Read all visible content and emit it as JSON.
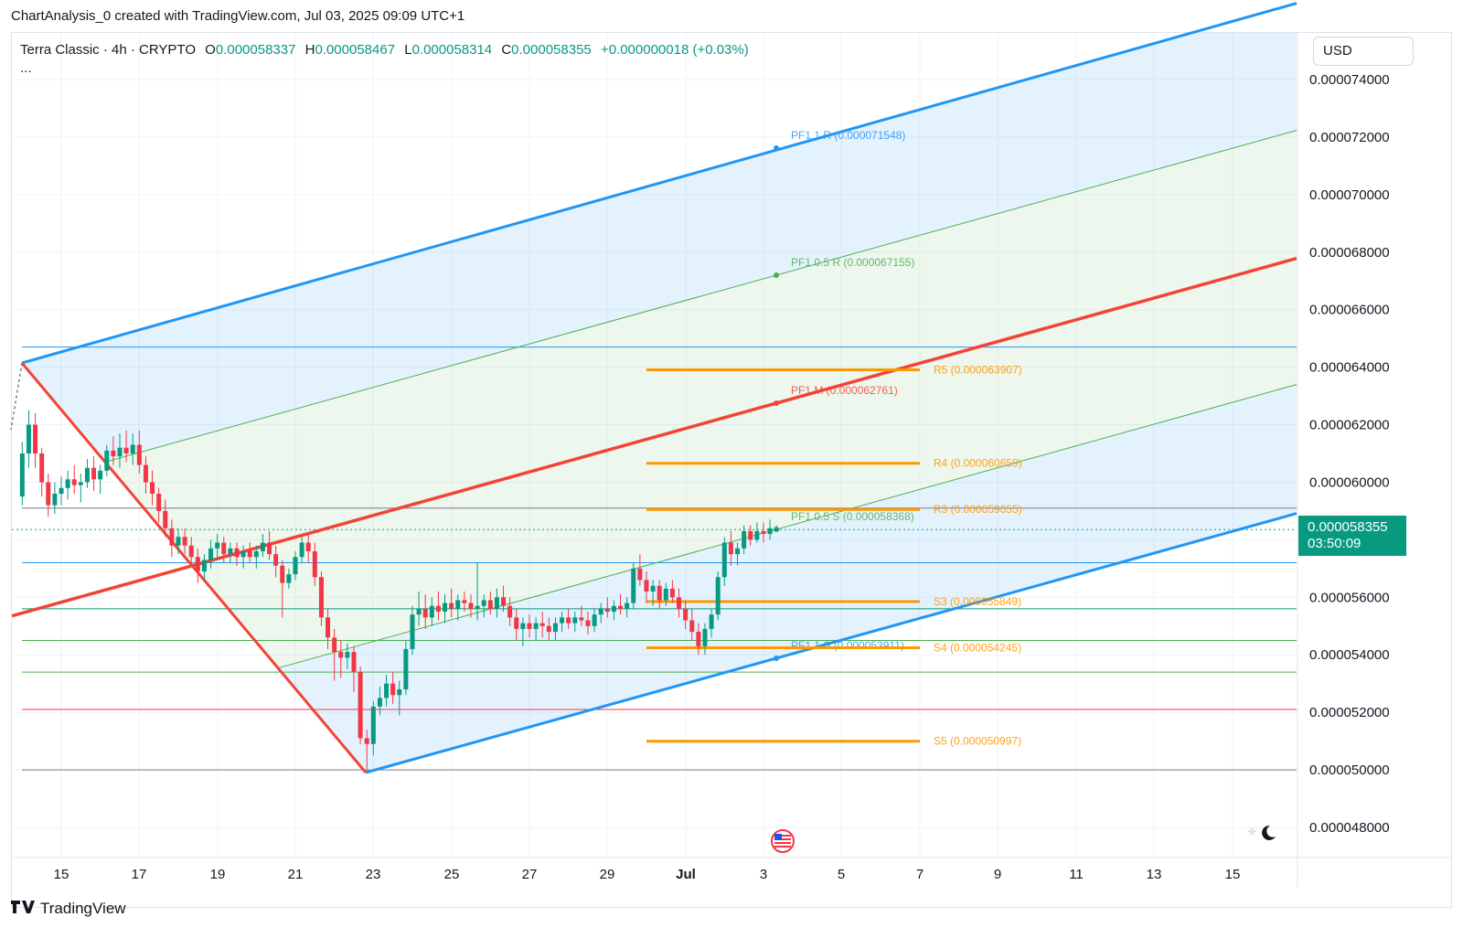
{
  "caption": "ChartAnalysis_0 created with TradingView.com, Jul 03, 2025 09:09 UTC+1",
  "legend": {
    "symbol": "Terra Classic · 4h · CRYPTO",
    "open_label": "O",
    "open": "0.000058337",
    "high_label": "H",
    "high": "0.000058467",
    "low_label": "L",
    "low": "0.000058314",
    "close_label": "C",
    "close": "0.000058355",
    "change": "+0.000000018 (+0.03%)",
    "more": "..."
  },
  "currency": "USD",
  "last_price": {
    "price": "0.000058355",
    "countdown": "03:50:09"
  },
  "footer": {
    "brand": "TradingView",
    "icon": "tradingview-logo-icon"
  },
  "icons": {
    "flag": "us-flag-icon",
    "theme": "moon-icon",
    "sun": "sun-icon"
  },
  "colors": {
    "up": "#089981",
    "down": "#f23645",
    "blue": "#2196f3",
    "red": "#f44336",
    "green": "#4caf50",
    "orange": "#ff9800",
    "grey": "#787b86"
  },
  "chart_data": {
    "type": "candlestick",
    "title": "Terra Classic · 4h · CRYPTO",
    "xlabel": "",
    "ylabel": "",
    "ylim": [
      4.72e-05,
      7.56e-05
    ],
    "y_ticks": [
      "0.000074000",
      "0.000072000",
      "0.000070000",
      "0.000068000",
      "0.000066000",
      "0.000064000",
      "0.000062000",
      "0.000060000",
      "0.000058000",
      "0.000056000",
      "0.000054000",
      "0.000052000",
      "0.000050000",
      "0.000048000"
    ],
    "x_ticks": [
      "15",
      "17",
      "19",
      "21",
      "23",
      "25",
      "27",
      "29",
      "Jul",
      "3",
      "5",
      "7",
      "9",
      "11",
      "13",
      "15"
    ],
    "series": [
      {
        "type": "candles",
        "approx": true,
        "values": [
          [
            "2025-06-14 00:00",
            5.95e-05,
            6.14e-05,
            5.92e-05,
            6.1e-05
          ],
          [
            "2025-06-14 04:00",
            6.1e-05,
            6.25e-05,
            6.05e-05,
            6.2e-05
          ],
          [
            "2025-06-14 08:00",
            6.2e-05,
            6.24e-05,
            6.05e-05,
            6.1e-05
          ],
          [
            "2025-06-14 12:00",
            6.1e-05,
            6.12e-05,
            5.95e-05,
            6e-05
          ],
          [
            "2025-06-14 16:00",
            6e-05,
            6.03e-05,
            5.88e-05,
            5.92e-05
          ],
          [
            "2025-06-14 20:00",
            5.92e-05,
            6e-05,
            5.89e-05,
            5.96e-05
          ],
          [
            "2025-06-15 00:00",
            5.96e-05,
            6.02e-05,
            5.92e-05,
            5.98e-05
          ],
          [
            "2025-06-15 04:00",
            5.98e-05,
            6.04e-05,
            5.94e-05,
            6.01e-05
          ],
          [
            "2025-06-15 08:00",
            6.01e-05,
            6.06e-05,
            5.96e-05,
            5.99e-05
          ],
          [
            "2025-06-15 12:00",
            5.99e-05,
            6.03e-05,
            5.93e-05,
            6e-05
          ],
          [
            "2025-06-15 16:00",
            6e-05,
            6.08e-05,
            5.98e-05,
            6.05e-05
          ],
          [
            "2025-06-15 20:00",
            6.05e-05,
            6.09e-05,
            5.97e-05,
            6.01e-05
          ],
          [
            "2025-06-16 00:00",
            6.01e-05,
            6.06e-05,
            5.96e-05,
            6.04e-05
          ],
          [
            "2025-06-16 04:00",
            6.04e-05,
            6.13e-05,
            6.02e-05,
            6.11e-05
          ],
          [
            "2025-06-16 08:00",
            6.11e-05,
            6.16e-05,
            6.06e-05,
            6.09e-05
          ],
          [
            "2025-06-16 12:00",
            6.09e-05,
            6.17e-05,
            6.05e-05,
            6.12e-05
          ],
          [
            "2025-06-16 16:00",
            6.12e-05,
            6.18e-05,
            6.07e-05,
            6.1e-05
          ],
          [
            "2025-06-16 20:00",
            6.1e-05,
            6.17e-05,
            6.06e-05,
            6.13e-05
          ],
          [
            "2025-06-17 00:00",
            6.13e-05,
            6.18e-05,
            6.03e-05,
            6.06e-05
          ],
          [
            "2025-06-17 04:00",
            6.06e-05,
            6.09e-05,
            5.96e-05,
            6e-05
          ],
          [
            "2025-06-17 08:00",
            6e-05,
            6.04e-05,
            5.92e-05,
            5.96e-05
          ],
          [
            "2025-06-17 12:00",
            5.96e-05,
            5.98e-05,
            5.86e-05,
            5.9e-05
          ],
          [
            "2025-06-17 16:00",
            5.9e-05,
            5.94e-05,
            5.81e-05,
            5.84e-05
          ],
          [
            "2025-06-17 20:00",
            5.84e-05,
            5.87e-05,
            5.74e-05,
            5.78e-05
          ],
          [
            "2025-06-18 00:00",
            5.78e-05,
            5.84e-05,
            5.75e-05,
            5.81e-05
          ],
          [
            "2025-06-18 04:00",
            5.81e-05,
            5.84e-05,
            5.75e-05,
            5.78e-05
          ],
          [
            "2025-06-18 08:00",
            5.78e-05,
            5.81e-05,
            5.71e-05,
            5.74e-05
          ],
          [
            "2025-06-18 12:00",
            5.74e-05,
            5.77e-05,
            5.65e-05,
            5.69e-05
          ],
          [
            "2025-06-18 16:00",
            5.69e-05,
            5.75e-05,
            5.66e-05,
            5.73e-05
          ],
          [
            "2025-06-18 20:00",
            5.73e-05,
            5.8e-05,
            5.7e-05,
            5.77e-05
          ],
          [
            "2025-06-19 00:00",
            5.77e-05,
            5.82e-05,
            5.73e-05,
            5.79e-05
          ],
          [
            "2025-06-19 04:00",
            5.79e-05,
            5.81e-05,
            5.72e-05,
            5.75e-05
          ],
          [
            "2025-06-19 08:00",
            5.75e-05,
            5.79e-05,
            5.72e-05,
            5.77e-05
          ],
          [
            "2025-06-19 12:00",
            5.77e-05,
            5.79e-05,
            5.71e-05,
            5.74e-05
          ],
          [
            "2025-06-19 16:00",
            5.74e-05,
            5.78e-05,
            5.7e-05,
            5.76e-05
          ],
          [
            "2025-06-19 20:00",
            5.76e-05,
            5.79e-05,
            5.72e-05,
            5.74e-05
          ],
          [
            "2025-06-20 00:00",
            5.74e-05,
            5.78e-05,
            5.7e-05,
            5.76e-05
          ],
          [
            "2025-06-20 04:00",
            5.76e-05,
            5.82e-05,
            5.74e-05,
            5.79e-05
          ],
          [
            "2025-06-20 08:00",
            5.79e-05,
            5.83e-05,
            5.73e-05,
            5.75e-05
          ],
          [
            "2025-06-20 12:00",
            5.75e-05,
            5.78e-05,
            5.67e-05,
            5.71e-05
          ],
          [
            "2025-06-20 16:00",
            5.71e-05,
            5.73e-05,
            5.53e-05,
            5.65e-05
          ],
          [
            "2025-06-20 20:00",
            5.65e-05,
            5.7e-05,
            5.63e-05,
            5.68e-05
          ],
          [
            "2025-06-21 00:00",
            5.68e-05,
            5.76e-05,
            5.66e-05,
            5.74e-05
          ],
          [
            "2025-06-21 04:00",
            5.74e-05,
            5.81e-05,
            5.72e-05,
            5.79e-05
          ],
          [
            "2025-06-21 08:00",
            5.79e-05,
            5.82e-05,
            5.72e-05,
            5.76e-05
          ],
          [
            "2025-06-21 12:00",
            5.76e-05,
            5.79e-05,
            5.64e-05,
            5.67e-05
          ],
          [
            "2025-06-21 16:00",
            5.67e-05,
            5.69e-05,
            5.5e-05,
            5.53e-05
          ],
          [
            "2025-06-21 20:00",
            5.53e-05,
            5.56e-05,
            5.42e-05,
            5.46e-05
          ],
          [
            "2025-06-22 00:00",
            5.46e-05,
            5.49e-05,
            5.31e-05,
            5.41e-05
          ],
          [
            "2025-06-22 04:00",
            5.41e-05,
            5.45e-05,
            5.32e-05,
            5.39e-05
          ],
          [
            "2025-06-22 08:00",
            5.39e-05,
            5.44e-05,
            5.35e-05,
            5.41e-05
          ],
          [
            "2025-06-22 12:00",
            5.41e-05,
            5.43e-05,
            5.27e-05,
            5.34e-05
          ],
          [
            "2025-06-22 16:00",
            5.34e-05,
            5.36e-05,
            5.09e-05,
            5.11e-05
          ],
          [
            "2025-06-22 20:00",
            5.11e-05,
            5.14e-05,
            5e-05,
            5.09e-05
          ],
          [
            "2025-06-23 00:00",
            5.09e-05,
            5.24e-05,
            5.05e-05,
            5.22e-05
          ],
          [
            "2025-06-23 04:00",
            5.22e-05,
            5.29e-05,
            5.19e-05,
            5.25e-05
          ],
          [
            "2025-06-23 08:00",
            5.25e-05,
            5.33e-05,
            5.22e-05,
            5.3e-05
          ],
          [
            "2025-06-23 12:00",
            5.3e-05,
            5.34e-05,
            5.23e-05,
            5.26e-05
          ],
          [
            "2025-06-23 16:00",
            5.26e-05,
            5.31e-05,
            5.19e-05,
            5.28e-05
          ],
          [
            "2025-06-23 20:00",
            5.28e-05,
            5.45e-05,
            5.26e-05,
            5.42e-05
          ],
          [
            "2025-06-24 00:00",
            5.42e-05,
            5.57e-05,
            5.4e-05,
            5.54e-05
          ],
          [
            "2025-06-24 04:00",
            5.54e-05,
            5.62e-05,
            5.5e-05,
            5.56e-05
          ],
          [
            "2025-06-24 08:00",
            5.56e-05,
            5.61e-05,
            5.49e-05,
            5.53e-05
          ],
          [
            "2025-06-24 12:00",
            5.53e-05,
            5.6e-05,
            5.5e-05,
            5.57e-05
          ],
          [
            "2025-06-24 16:00",
            5.57e-05,
            5.62e-05,
            5.52e-05,
            5.55e-05
          ],
          [
            "2025-06-24 20:00",
            5.55e-05,
            5.61e-05,
            5.51e-05,
            5.58e-05
          ],
          [
            "2025-06-25 00:00",
            5.58e-05,
            5.63e-05,
            5.53e-05,
            5.56e-05
          ],
          [
            "2025-06-25 04:00",
            5.56e-05,
            5.61e-05,
            5.52e-05,
            5.59e-05
          ],
          [
            "2025-06-25 08:00",
            5.59e-05,
            5.62e-05,
            5.55e-05,
            5.58e-05
          ],
          [
            "2025-06-25 12:00",
            5.58e-05,
            5.61e-05,
            5.53e-05,
            5.56e-05
          ],
          [
            "2025-06-25 16:00",
            5.56e-05,
            5.72e-05,
            5.52e-05,
            5.57e-05
          ],
          [
            "2025-06-25 20:00",
            5.57e-05,
            5.61e-05,
            5.53e-05,
            5.59e-05
          ],
          [
            "2025-06-26 00:00",
            5.59e-05,
            5.62e-05,
            5.54e-05,
            5.56e-05
          ],
          [
            "2025-06-26 04:00",
            5.56e-05,
            5.63e-05,
            5.53e-05,
            5.6e-05
          ],
          [
            "2025-06-26 08:00",
            5.6e-05,
            5.64e-05,
            5.55e-05,
            5.57e-05
          ],
          [
            "2025-06-26 12:00",
            5.57e-05,
            5.6e-05,
            5.5e-05,
            5.53e-05
          ],
          [
            "2025-06-26 16:00",
            5.53e-05,
            5.56e-05,
            5.45e-05,
            5.49e-05
          ],
          [
            "2025-06-26 20:00",
            5.49e-05,
            5.53e-05,
            5.43e-05,
            5.51e-05
          ],
          [
            "2025-06-27 00:00",
            5.51e-05,
            5.54e-05,
            5.46e-05,
            5.49e-05
          ],
          [
            "2025-06-27 04:00",
            5.49e-05,
            5.53e-05,
            5.45e-05,
            5.51e-05
          ],
          [
            "2025-06-27 08:00",
            5.51e-05,
            5.55e-05,
            5.46e-05,
            5.5e-05
          ],
          [
            "2025-06-27 12:00",
            5.5e-05,
            5.53e-05,
            5.45e-05,
            5.48e-05
          ],
          [
            "2025-06-27 16:00",
            5.48e-05,
            5.53e-05,
            5.45e-05,
            5.51e-05
          ],
          [
            "2025-06-27 20:00",
            5.51e-05,
            5.55e-05,
            5.48e-05,
            5.53e-05
          ],
          [
            "2025-06-28 00:00",
            5.53e-05,
            5.56e-05,
            5.49e-05,
            5.51e-05
          ],
          [
            "2025-06-28 04:00",
            5.51e-05,
            5.55e-05,
            5.48e-05,
            5.53e-05
          ],
          [
            "2025-06-28 08:00",
            5.53e-05,
            5.57e-05,
            5.5e-05,
            5.52e-05
          ],
          [
            "2025-06-28 12:00",
            5.52e-05,
            5.55e-05,
            5.47e-05,
            5.5e-05
          ],
          [
            "2025-06-28 16:00",
            5.5e-05,
            5.56e-05,
            5.48e-05,
            5.54e-05
          ],
          [
            "2025-06-28 20:00",
            5.54e-05,
            5.58e-05,
            5.51e-05,
            5.56e-05
          ],
          [
            "2025-06-29 00:00",
            5.56e-05,
            5.6e-05,
            5.53e-05,
            5.55e-05
          ],
          [
            "2025-06-29 04:00",
            5.55e-05,
            5.59e-05,
            5.52e-05,
            5.57e-05
          ],
          [
            "2025-06-29 08:00",
            5.57e-05,
            5.61e-05,
            5.54e-05,
            5.56e-05
          ],
          [
            "2025-06-29 12:00",
            5.56e-05,
            5.6e-05,
            5.53e-05,
            5.58e-05
          ],
          [
            "2025-06-29 16:00",
            5.58e-05,
            5.72e-05,
            5.56e-05,
            5.7e-05
          ],
          [
            "2025-06-29 20:00",
            5.7e-05,
            5.75e-05,
            5.64e-05,
            5.66e-05
          ],
          [
            "2025-06-30 00:00",
            5.66e-05,
            5.69e-05,
            5.58e-05,
            5.62e-05
          ],
          [
            "2025-06-30 04:00",
            5.62e-05,
            5.66e-05,
            5.57e-05,
            5.64e-05
          ],
          [
            "2025-06-30 08:00",
            5.64e-05,
            5.66e-05,
            5.56e-05,
            5.59e-05
          ],
          [
            "2025-06-30 12:00",
            5.59e-05,
            5.65e-05,
            5.57e-05,
            5.63e-05
          ],
          [
            "2025-06-30 16:00",
            5.63e-05,
            5.66e-05,
            5.58e-05,
            5.6e-05
          ],
          [
            "2025-06-30 20:00",
            5.6e-05,
            5.63e-05,
            5.53e-05,
            5.56e-05
          ],
          [
            "2025-07-01 00:00",
            5.56e-05,
            5.59e-05,
            5.49e-05,
            5.52e-05
          ],
          [
            "2025-07-01 04:00",
            5.52e-05,
            5.56e-05,
            5.45e-05,
            5.48e-05
          ],
          [
            "2025-07-01 08:00",
            5.48e-05,
            5.51e-05,
            5.4e-05,
            5.43e-05
          ],
          [
            "2025-07-01 12:00",
            5.43e-05,
            5.51e-05,
            5.4e-05,
            5.49e-05
          ],
          [
            "2025-07-01 16:00",
            5.49e-05,
            5.56e-05,
            5.46e-05,
            5.54e-05
          ],
          [
            "2025-07-01 20:00",
            5.54e-05,
            5.69e-05,
            5.52e-05,
            5.67e-05
          ],
          [
            "2025-07-02 00:00",
            5.67e-05,
            5.81e-05,
            5.64e-05,
            5.79e-05
          ],
          [
            "2025-07-02 04:00",
            5.79e-05,
            5.83e-05,
            5.71e-05,
            5.75e-05
          ],
          [
            "2025-07-02 08:00",
            5.75e-05,
            5.79e-05,
            5.71e-05,
            5.77e-05
          ],
          [
            "2025-07-02 12:00",
            5.77e-05,
            5.85e-05,
            5.75e-05,
            5.83e-05
          ],
          [
            "2025-07-02 16:00",
            5.83e-05,
            5.85e-05,
            5.78e-05,
            5.8e-05
          ],
          [
            "2025-07-02 20:00",
            5.8e-05,
            5.86e-05,
            5.79e-05,
            5.83e-05
          ],
          [
            "2025-07-03 00:00",
            5.83e-05,
            5.86e-05,
            5.79e-05,
            5.82e-05
          ],
          [
            "2025-07-03 04:00",
            5.82e-05,
            5.87e-05,
            5.8e-05,
            5.84e-05
          ],
          [
            "2025-07-03 08:00",
            5.83e-05,
            5.85e-05,
            5.83e-05,
            5.84e-05
          ]
        ]
      }
    ],
    "pitchfork": {
      "upper_label": "PF1 1 R (0.000071548)",
      "upper_mid_label": "PF1 0.5 R (0.000067155)",
      "median_label": "PF1 M (0.000062761)",
      "lower_mid_label": "PF1 0.5 S (0.000058368)",
      "lower_label": "PF1 1 S (0.000053911)"
    },
    "pivot_levels": [
      {
        "label": "R5 (0.000063907)",
        "price": 6.3907e-05
      },
      {
        "label": "R4 (0.000060659)",
        "price": 6.0659e-05
      },
      {
        "label": "R3 (0.000059055)",
        "price": 5.9055e-05
      },
      {
        "label": "S3 (0.000055849)",
        "price": 5.5849e-05
      },
      {
        "label": "S4 (0.000054245)",
        "price": 5.4245e-05
      },
      {
        "label": "S5 (0.000050997)",
        "price": 5.0997e-05
      }
    ],
    "horizontal_lines": [
      {
        "price": 6.47e-05,
        "color": "#2196f3"
      },
      {
        "price": 5.91e-05,
        "color": "#787b86"
      },
      {
        "price": 5.72e-05,
        "color": "#2196f3"
      },
      {
        "price": 5.56e-05,
        "color": "#089981"
      },
      {
        "price": 5.45e-05,
        "color": "#4caf50"
      },
      {
        "price": 5.34e-05,
        "color": "#4caf50"
      },
      {
        "price": 5.21e-05,
        "color": "#f23645"
      },
      {
        "price": 5e-05,
        "color": "#787b86"
      }
    ],
    "grid": true,
    "legend_position": "top-left"
  }
}
